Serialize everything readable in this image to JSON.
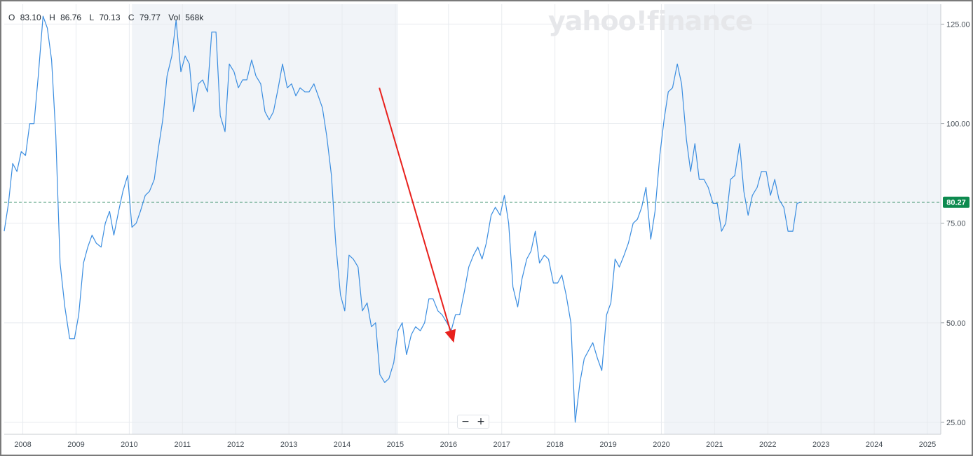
{
  "ohlc": {
    "open_label": "O",
    "open": "83.10",
    "high_label": "H",
    "high": "86.76",
    "low_label": "L",
    "low": "70.13",
    "close_label": "C",
    "close": "79.77",
    "volume_label": "Vol",
    "volume": "568k"
  },
  "watermark": "yahoo!finance",
  "zoom": {
    "out_label": "−",
    "in_label": "+"
  },
  "colors": {
    "line": "#3a8de0",
    "band": "#f1f4f8",
    "grid": "#e8ebef",
    "price_badge": "#0d8a4f",
    "annotation_arrow": "#e8201c",
    "reference_line": "#2f8a63"
  },
  "chart_data": {
    "type": "line",
    "x_unit": "year",
    "xlim": [
      2007.6,
      2025.2
    ],
    "ylim": [
      22,
      130
    ],
    "x_tick_labels": [
      "2008",
      "2009",
      "2010",
      "2011",
      "2012",
      "2013",
      "2014",
      "2015",
      "2016",
      "2017",
      "2018",
      "2019",
      "2020",
      "2021",
      "2022",
      "2023",
      "2024",
      "2025"
    ],
    "y_tick_labels": [
      "125.00",
      "100.00",
      "75.00",
      "50.00",
      "25.00"
    ],
    "y_ticks": [
      125,
      100,
      75,
      50,
      25
    ],
    "shaded_bands": [
      [
        2010,
        2015
      ],
      [
        2020,
        2025.2
      ]
    ],
    "current_price": 80.27,
    "current_price_label": "80.27",
    "reference_line_value": 80.27,
    "annotation_arrow": {
      "from": {
        "x": 2014.65,
        "y": 109
      },
      "to": {
        "x": 2016.05,
        "y": 45
      }
    },
    "grid": true,
    "series": [
      {
        "values": [
          [
            2007.6,
            73
          ],
          [
            2007.68,
            80
          ],
          [
            2007.76,
            90
          ],
          [
            2007.84,
            88
          ],
          [
            2007.92,
            93
          ],
          [
            2008.0,
            92
          ],
          [
            2008.08,
            100
          ],
          [
            2008.16,
            100
          ],
          [
            2008.24,
            112
          ],
          [
            2008.33,
            127
          ],
          [
            2008.41,
            124
          ],
          [
            2008.49,
            116
          ],
          [
            2008.57,
            97
          ],
          [
            2008.65,
            65
          ],
          [
            2008.74,
            54
          ],
          [
            2008.83,
            46
          ],
          [
            2008.92,
            46
          ],
          [
            2009.0,
            52
          ],
          [
            2009.09,
            65
          ],
          [
            2009.17,
            69
          ],
          [
            2009.25,
            72
          ],
          [
            2009.33,
            70
          ],
          [
            2009.42,
            69
          ],
          [
            2009.5,
            75
          ],
          [
            2009.58,
            78
          ],
          [
            2009.66,
            72
          ],
          [
            2009.75,
            78
          ],
          [
            2009.83,
            83
          ],
          [
            2009.92,
            87
          ],
          [
            2010.0,
            74
          ],
          [
            2010.08,
            75
          ],
          [
            2010.16,
            78
          ],
          [
            2010.25,
            82
          ],
          [
            2010.33,
            83
          ],
          [
            2010.42,
            86
          ],
          [
            2010.5,
            94
          ],
          [
            2010.58,
            101
          ],
          [
            2010.66,
            112
          ],
          [
            2010.75,
            117
          ],
          [
            2010.83,
            126
          ],
          [
            2010.92,
            113
          ],
          [
            2011.0,
            117
          ],
          [
            2011.08,
            115
          ],
          [
            2011.16,
            103
          ],
          [
            2011.25,
            110
          ],
          [
            2011.33,
            111
          ],
          [
            2011.42,
            108
          ],
          [
            2011.5,
            123
          ],
          [
            2011.58,
            123
          ],
          [
            2011.66,
            102
          ],
          [
            2011.75,
            98
          ],
          [
            2011.83,
            115
          ],
          [
            2011.92,
            113
          ],
          [
            2012.0,
            109
          ],
          [
            2012.08,
            111
          ],
          [
            2012.16,
            111
          ],
          [
            2012.25,
            116
          ],
          [
            2012.33,
            112
          ],
          [
            2012.42,
            110
          ],
          [
            2012.5,
            103
          ],
          [
            2012.58,
            101
          ],
          [
            2012.66,
            103
          ],
          [
            2012.75,
            109
          ],
          [
            2012.83,
            115
          ],
          [
            2012.92,
            109
          ],
          [
            2013.0,
            110
          ],
          [
            2013.08,
            107
          ],
          [
            2013.16,
            109
          ],
          [
            2013.25,
            108
          ],
          [
            2013.33,
            108
          ],
          [
            2013.42,
            110
          ],
          [
            2013.5,
            107
          ],
          [
            2013.58,
            104
          ],
          [
            2013.66,
            97
          ],
          [
            2013.75,
            87
          ],
          [
            2013.83,
            70
          ],
          [
            2013.92,
            57
          ],
          [
            2014.0,
            53
          ],
          [
            2014.08,
            67
          ],
          [
            2014.16,
            66
          ],
          [
            2014.25,
            64
          ],
          [
            2014.33,
            53
          ],
          [
            2014.42,
            55
          ],
          [
            2014.5,
            49
          ],
          [
            2014.58,
            50
          ],
          [
            2014.66,
            37
          ],
          [
            2014.75,
            35
          ],
          [
            2014.83,
            36
          ],
          [
            2014.92,
            40
          ],
          [
            2015.0,
            48
          ],
          [
            2015.08,
            50
          ],
          [
            2015.16,
            42
          ],
          [
            2015.25,
            47
          ],
          [
            2015.33,
            49
          ],
          [
            2015.42,
            48
          ],
          [
            2015.5,
            50
          ],
          [
            2015.58,
            56
          ],
          [
            2015.66,
            56
          ],
          [
            2015.75,
            53
          ],
          [
            2015.83,
            52
          ],
          [
            2015.92,
            50
          ],
          [
            2016.0,
            48
          ],
          [
            2016.08,
            52
          ],
          [
            2016.16,
            52
          ],
          [
            2016.25,
            58
          ],
          [
            2016.33,
            64
          ],
          [
            2016.42,
            67
          ],
          [
            2016.5,
            69
          ],
          [
            2016.58,
            66
          ],
          [
            2016.66,
            70
          ],
          [
            2016.75,
            77
          ],
          [
            2016.83,
            79
          ],
          [
            2016.92,
            77
          ],
          [
            2017.0,
            82
          ],
          [
            2017.08,
            75
          ],
          [
            2017.16,
            59
          ],
          [
            2017.25,
            54
          ],
          [
            2017.33,
            61
          ],
          [
            2017.42,
            66
          ],
          [
            2017.5,
            68
          ],
          [
            2017.58,
            73
          ],
          [
            2017.66,
            65
          ],
          [
            2017.75,
            67
          ],
          [
            2017.83,
            66
          ],
          [
            2017.92,
            60
          ],
          [
            2018.0,
            60
          ],
          [
            2018.08,
            62
          ],
          [
            2018.16,
            57
          ],
          [
            2018.25,
            50
          ],
          [
            2018.33,
            25
          ],
          [
            2018.42,
            35
          ],
          [
            2018.5,
            41
          ],
          [
            2018.58,
            43
          ],
          [
            2018.66,
            45
          ],
          [
            2018.75,
            41
          ],
          [
            2018.83,
            38
          ],
          [
            2018.92,
            52
          ],
          [
            2019.0,
            55
          ],
          [
            2019.08,
            66
          ],
          [
            2019.16,
            64
          ],
          [
            2019.25,
            67
          ],
          [
            2019.33,
            70
          ],
          [
            2019.42,
            75
          ],
          [
            2019.5,
            76
          ],
          [
            2019.58,
            79
          ],
          [
            2019.66,
            84
          ],
          [
            2019.75,
            71
          ],
          [
            2019.83,
            78
          ],
          [
            2019.92,
            92
          ],
          [
            2020.0,
            101
          ],
          [
            2020.08,
            108
          ],
          [
            2020.16,
            109
          ],
          [
            2020.25,
            115
          ],
          [
            2020.33,
            110
          ],
          [
            2020.42,
            96
          ],
          [
            2020.5,
            88
          ],
          [
            2020.58,
            95
          ],
          [
            2020.66,
            86
          ],
          [
            2020.75,
            86
          ],
          [
            2020.83,
            84
          ],
          [
            2020.92,
            80
          ],
          [
            2021.0,
            80
          ],
          [
            2021.08,
            73
          ],
          [
            2021.16,
            75
          ],
          [
            2021.25,
            86
          ],
          [
            2021.33,
            87
          ],
          [
            2021.42,
            95
          ],
          [
            2021.5,
            83
          ],
          [
            2021.58,
            77
          ],
          [
            2021.66,
            82
          ],
          [
            2021.75,
            84
          ],
          [
            2021.83,
            88
          ],
          [
            2021.92,
            88
          ],
          [
            2022.0,
            82
          ],
          [
            2022.08,
            86
          ],
          [
            2022.16,
            81
          ],
          [
            2022.25,
            79
          ],
          [
            2022.33,
            73
          ],
          [
            2022.42,
            73
          ],
          [
            2022.5,
            80
          ],
          [
            2022.58,
            80.27
          ]
        ]
      }
    ]
  }
}
